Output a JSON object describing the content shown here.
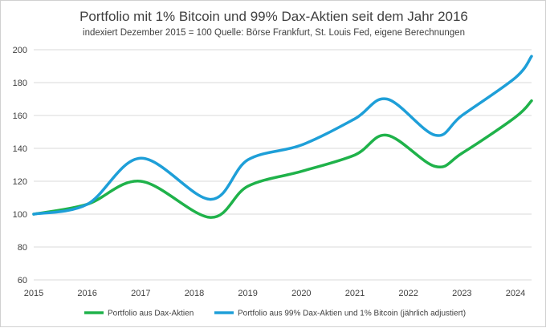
{
  "chart_data": {
    "type": "line",
    "title": "Portfolio mit 1% Bitcoin und 99% Dax-Aktien seit dem Jahr 2016",
    "subtitle": "indexiert Dezember 2015 = 100 Quelle: Börse Frankfurt, St. Louis Fed, eigene Berechnungen",
    "xlabel": "",
    "ylabel": "",
    "xlim": [
      2015,
      2024.3
    ],
    "ylim": [
      60,
      200
    ],
    "yticks": [
      60,
      80,
      100,
      120,
      140,
      160,
      180,
      200
    ],
    "xticks": [
      2015,
      2016,
      2017,
      2018,
      2019,
      2020,
      2021,
      2022,
      2023,
      2024
    ],
    "grid": true,
    "legend_position": "bottom",
    "series": [
      {
        "name": "Portfolio aus Dax-Aktien",
        "color": "#1fb24a",
        "x": [
          2015,
          2016,
          2017,
          2018.3,
          2019,
          2020,
          2021,
          2021.6,
          2022.5,
          2023,
          2024,
          2024.3
        ],
        "values": [
          100,
          106,
          120,
          98,
          117,
          126,
          136,
          148,
          129,
          137,
          159,
          169
        ]
      },
      {
        "name": "Portfolio aus 99% Dax-Aktien und 1% Bitcoin (jährlich adjustiert)",
        "color": "#1e9fd8",
        "x": [
          2015,
          2016,
          2017,
          2018.3,
          2019,
          2020,
          2021,
          2021.6,
          2022.5,
          2023,
          2024,
          2024.3
        ],
        "values": [
          100,
          106,
          134,
          109,
          133,
          142,
          158,
          170,
          148,
          160,
          183,
          196
        ]
      }
    ]
  }
}
